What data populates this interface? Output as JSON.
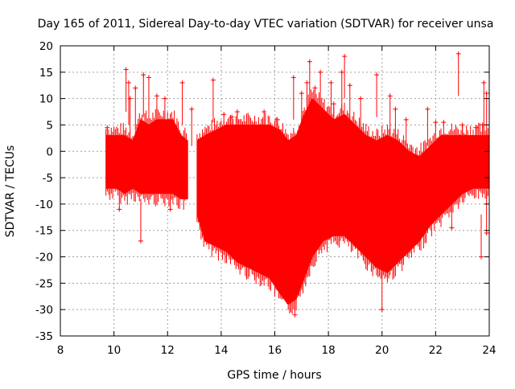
{
  "chart_data": {
    "type": "scatter",
    "title": "Day 165 of 2011, Sidereal Day-to-day VTEC variation (SDTVAR) for receiver unsa",
    "xlabel": "GPS time / hours",
    "ylabel": "SDTVAR / TECUs",
    "xlim": [
      8,
      24
    ],
    "ylim": [
      -35,
      20
    ],
    "x_ticks": [
      8,
      10,
      12,
      14,
      16,
      18,
      20,
      22,
      24
    ],
    "y_ticks": [
      -35,
      -30,
      -25,
      -20,
      -15,
      -10,
      -5,
      0,
      5,
      10,
      15,
      20
    ],
    "grid": true,
    "marker": "+",
    "color": "#ff0000",
    "series": [
      {
        "name": "SDTVAR",
        "segments": [
          {
            "x": [
              9.7,
              10.1,
              10.4,
              10.7,
              11.0,
              11.3,
              11.6,
              11.9,
              12.2,
              12.5,
              12.75
            ],
            "upper": [
              3,
              3,
              3,
              2,
              6,
              5,
              6,
              6,
              6,
              3,
              2
            ],
            "lower": [
              -7,
              -7,
              -8,
              -7,
              -8,
              -8,
              -8,
              -8,
              -8,
              -9,
              -9
            ]
          },
          {
            "x": [
              13.1,
              13.4,
              13.8,
              14.2,
              14.6,
              15.0,
              15.4,
              15.8,
              16.2,
              16.5,
              16.8,
              17.1,
              17.4,
              17.8,
              18.2,
              18.6,
              19.0,
              19.4,
              19.8,
              20.2,
              20.6,
              21.0,
              21.4,
              21.8,
              22.2,
              22.6,
              23.0,
              23.4,
              23.8,
              24.0
            ],
            "upper": [
              2,
              3,
              4,
              5,
              5,
              5,
              5,
              5,
              4,
              2,
              3,
              7,
              10,
              8,
              6,
              7,
              5,
              3,
              2,
              3,
              2,
              0,
              -1,
              1,
              3,
              3,
              3,
              3,
              3,
              3
            ],
            "lower": [
              -12,
              -17,
              -18,
              -19,
              -21,
              -22,
              -23,
              -24,
              -27,
              -29,
              -28,
              -24,
              -20,
              -17,
              -16,
              -16,
              -18,
              -20,
              -22,
              -23,
              -21,
              -19,
              -17,
              -14,
              -12,
              -10,
              -8,
              -7,
              -7,
              -7
            ]
          }
        ],
        "outliers": [
          [
            9.75,
            4.5
          ],
          [
            10.2,
            -11
          ],
          [
            10.45,
            15.5
          ],
          [
            10.55,
            13
          ],
          [
            10.6,
            10
          ],
          [
            10.8,
            12
          ],
          [
            11.0,
            -17
          ],
          [
            11.1,
            14.5
          ],
          [
            11.3,
            14
          ],
          [
            11.6,
            10.5
          ],
          [
            11.9,
            10
          ],
          [
            12.1,
            -11
          ],
          [
            12.55,
            13
          ],
          [
            12.9,
            8
          ],
          [
            13.7,
            13.5
          ],
          [
            14.1,
            7
          ],
          [
            14.4,
            6.5
          ],
          [
            14.6,
            7.5
          ],
          [
            15.6,
            7.5
          ],
          [
            16.1,
            6
          ],
          [
            16.7,
            14
          ],
          [
            16.75,
            -31
          ],
          [
            17.0,
            11
          ],
          [
            17.2,
            13
          ],
          [
            17.3,
            17
          ],
          [
            17.5,
            12
          ],
          [
            17.7,
            15
          ],
          [
            18.1,
            13
          ],
          [
            18.2,
            9
          ],
          [
            18.5,
            15
          ],
          [
            18.6,
            18
          ],
          [
            18.8,
            12.5
          ],
          [
            19.2,
            10
          ],
          [
            19.8,
            14.5
          ],
          [
            20.0,
            -30
          ],
          [
            20.3,
            10.5
          ],
          [
            20.5,
            8
          ],
          [
            20.9,
            6
          ],
          [
            21.7,
            8
          ],
          [
            22.0,
            5.5
          ],
          [
            22.3,
            5.5
          ],
          [
            22.6,
            -14.5
          ],
          [
            22.85,
            18.5
          ],
          [
            23.0,
            5
          ],
          [
            23.5,
            4.5
          ],
          [
            23.7,
            -20
          ],
          [
            23.8,
            13
          ],
          [
            23.9,
            11
          ],
          [
            23.9,
            -15.5
          ],
          [
            23.75,
            5
          ]
        ]
      }
    ]
  }
}
